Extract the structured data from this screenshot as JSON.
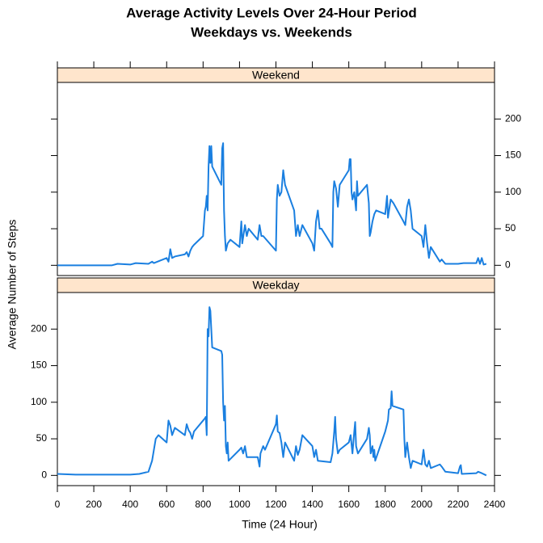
{
  "chart_data": {
    "type": "line",
    "title": "Average Activity Levels Over 24-Hour Period",
    "subtitle": "Weekdays vs. Weekends",
    "xlabel": "Time (24 Hour)",
    "ylabel": "Average Number of Steps",
    "color": "#1a7fe0",
    "xlim": [
      0,
      2400
    ],
    "xticks": [
      0,
      200,
      400,
      600,
      800,
      1000,
      1200,
      1400,
      1600,
      1800,
      2000,
      2200,
      2400
    ],
    "ylim": [
      -14,
      250
    ],
    "yticks": [
      0,
      50,
      100,
      150,
      200
    ],
    "panels": [
      {
        "strip": "Weekend",
        "x": [
          0,
          100,
          200,
          300,
          330,
          400,
          430,
          500,
          520,
          530,
          600,
          610,
          620,
          630,
          645,
          700,
          710,
          720,
          730,
          740,
          750,
          800,
          810,
          815,
          820,
          825,
          830,
          835,
          840,
          845,
          850,
          900,
          905,
          910,
          915,
          920,
          925,
          935,
          950,
          1000,
          1010,
          1015,
          1030,
          1040,
          1050,
          1100,
          1110,
          1120,
          1130,
          1200,
          1205,
          1210,
          1220,
          1230,
          1240,
          1250,
          1300,
          1310,
          1320,
          1330,
          1345,
          1400,
          1410,
          1420,
          1430,
          1440,
          1450,
          1500,
          1510,
          1515,
          1520,
          1530,
          1540,
          1550,
          1600,
          1605,
          1610,
          1615,
          1620,
          1630,
          1640,
          1645,
          1650,
          1700,
          1710,
          1715,
          1720,
          1730,
          1740,
          1750,
          1800,
          1810,
          1815,
          1830,
          1845,
          1900,
          1910,
          1920,
          1930,
          1940,
          1950,
          2000,
          2010,
          2020,
          2030,
          2040,
          2050,
          2100,
          2110,
          2130,
          2200,
          2230,
          2300,
          2310,
          2320,
          2330,
          2340,
          2355
        ],
        "values": [
          0,
          0,
          0,
          0,
          2,
          1,
          3,
          2,
          5,
          3,
          10,
          5,
          22,
          10,
          12,
          15,
          18,
          12,
          20,
          25,
          28,
          40,
          75,
          80,
          95,
          75,
          135,
          163,
          140,
          163,
          135,
          110,
          160,
          167,
          75,
          40,
          20,
          30,
          35,
          25,
          60,
          30,
          55,
          40,
          50,
          35,
          55,
          40,
          40,
          20,
          90,
          110,
          95,
          100,
          130,
          110,
          75,
          40,
          55,
          40,
          55,
          30,
          20,
          60,
          75,
          50,
          50,
          30,
          25,
          100,
          115,
          105,
          80,
          110,
          130,
          145,
          145,
          100,
          90,
          100,
          75,
          115,
          95,
          110,
          85,
          40,
          45,
          60,
          70,
          75,
          70,
          95,
          65,
          90,
          85,
          60,
          55,
          80,
          90,
          75,
          50,
          40,
          25,
          55,
          30,
          10,
          25,
          5,
          8,
          2,
          2,
          3,
          3,
          10,
          2,
          10,
          1,
          2
        ]
      },
      {
        "strip": "Weekday",
        "x": [
          0,
          100,
          200,
          300,
          400,
          450,
          500,
          520,
          540,
          555,
          600,
          610,
          620,
          630,
          645,
          700,
          710,
          720,
          730,
          740,
          750,
          800,
          810,
          815,
          820,
          825,
          830,
          835,
          840,
          845,
          850,
          900,
          905,
          910,
          915,
          920,
          925,
          930,
          935,
          940,
          1000,
          1010,
          1020,
          1030,
          1040,
          1100,
          1110,
          1115,
          1130,
          1140,
          1200,
          1205,
          1210,
          1220,
          1230,
          1240,
          1250,
          1300,
          1310,
          1320,
          1330,
          1345,
          1400,
          1410,
          1420,
          1430,
          1500,
          1510,
          1520,
          1525,
          1530,
          1540,
          1550,
          1600,
          1610,
          1620,
          1630,
          1635,
          1640,
          1650,
          1700,
          1710,
          1715,
          1720,
          1730,
          1735,
          1740,
          1745,
          1800,
          1810,
          1815,
          1820,
          1830,
          1835,
          1840,
          1900,
          1905,
          1910,
          1920,
          1930,
          1940,
          1950,
          2000,
          2010,
          2020,
          2030,
          2040,
          2050,
          2100,
          2110,
          2130,
          2200,
          2210,
          2215,
          2220,
          2300,
          2310,
          2330,
          2355
        ],
        "values": [
          2,
          1,
          1,
          1,
          1,
          2,
          5,
          20,
          50,
          55,
          45,
          75,
          68,
          55,
          65,
          55,
          70,
          62,
          58,
          50,
          60,
          75,
          78,
          80,
          55,
          200,
          190,
          230,
          225,
          200,
          175,
          170,
          165,
          100,
          75,
          95,
          40,
          30,
          45,
          20,
          35,
          38,
          30,
          40,
          25,
          25,
          12,
          30,
          40,
          35,
          70,
          82,
          60,
          58,
          45,
          25,
          45,
          20,
          40,
          28,
          35,
          55,
          40,
          25,
          35,
          20,
          18,
          30,
          60,
          80,
          50,
          30,
          35,
          45,
          55,
          30,
          60,
          73,
          40,
          30,
          50,
          65,
          55,
          30,
          40,
          25,
          35,
          20,
          60,
          70,
          75,
          90,
          92,
          115,
          95,
          90,
          50,
          25,
          45,
          25,
          10,
          20,
          15,
          35,
          15,
          12,
          20,
          10,
          15,
          12,
          5,
          3,
          12,
          14,
          2,
          3,
          5,
          3,
          0
        ]
      }
    ]
  }
}
